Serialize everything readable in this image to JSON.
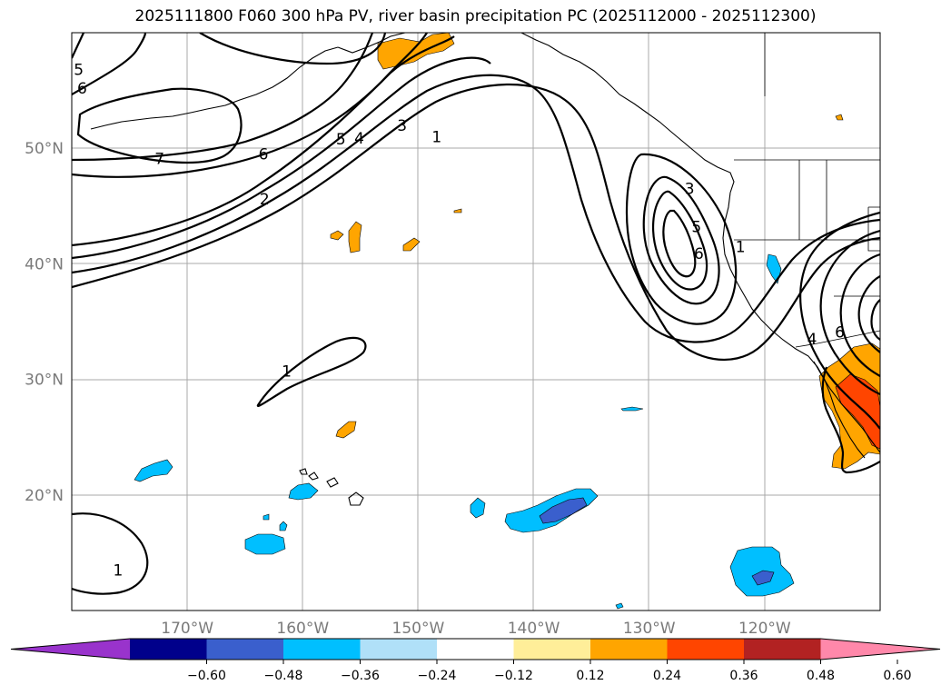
{
  "title": "2025111800 F060 300 hPa PV, river basin precipitation PC (2025112000 - 2025112300)",
  "map": {
    "lon_range": [
      -180,
      -110
    ],
    "lat_range": [
      10,
      60
    ],
    "lat_labels": [
      {
        "lat": 50,
        "text": "50°N"
      },
      {
        "lat": 40,
        "text": "40°N"
      },
      {
        "lat": 30,
        "text": "30°N"
      },
      {
        "lat": 20,
        "text": "20°N"
      }
    ],
    "lon_labels": [
      {
        "lon": -170,
        "text": "170°W"
      },
      {
        "lon": -160,
        "text": "160°W"
      },
      {
        "lon": -150,
        "text": "150°W"
      },
      {
        "lon": -140,
        "text": "140°W"
      },
      {
        "lon": -130,
        "text": "130°W"
      },
      {
        "lon": -120,
        "text": "120°W"
      }
    ],
    "contour_labels": [
      {
        "text": "5",
        "lon": -179.4,
        "lat": 56.8
      },
      {
        "text": "6",
        "lon": -179.1,
        "lat": 55.2
      },
      {
        "text": "7",
        "lon": -172.4,
        "lat": 49.1
      },
      {
        "text": "6",
        "lon": -163.4,
        "lat": 49.5
      },
      {
        "text": "5",
        "lon": -156.7,
        "lat": 50.8
      },
      {
        "text": "4",
        "lon": -155.1,
        "lat": 50.9
      },
      {
        "text": "3",
        "lon": -151.4,
        "lat": 52.0
      },
      {
        "text": "1",
        "lon": -148.4,
        "lat": 51.0
      },
      {
        "text": "2",
        "lon": -163.3,
        "lat": 45.6
      },
      {
        "text": "1",
        "lon": -161.4,
        "lat": 30.7
      },
      {
        "text": "1",
        "lon": -176.0,
        "lat": 13.5
      },
      {
        "text": "3",
        "lon": -126.5,
        "lat": 46.5
      },
      {
        "text": "5",
        "lon": -125.9,
        "lat": 43.2
      },
      {
        "text": "6",
        "lon": -125.7,
        "lat": 40.9
      },
      {
        "text": "1",
        "lon": -122.1,
        "lat": 41.5
      },
      {
        "text": "4",
        "lon": -115.9,
        "lat": 33.5
      },
      {
        "text": "6",
        "lon": -113.5,
        "lat": 34.1
      }
    ]
  },
  "colorbar": {
    "colors": [
      "#9933cc",
      "#00008b",
      "#3a5fcd",
      "#00bfff",
      "#b0e0f8",
      "#ffffff",
      "#ffee99",
      "#ffa500",
      "#ff4500",
      "#b22222",
      "#ff88aa"
    ],
    "ticks": [
      "−0.60",
      "−0.48",
      "−0.36",
      "−0.24",
      "−0.12",
      "0.12",
      "0.24",
      "0.36",
      "0.48",
      "0.60"
    ]
  }
}
